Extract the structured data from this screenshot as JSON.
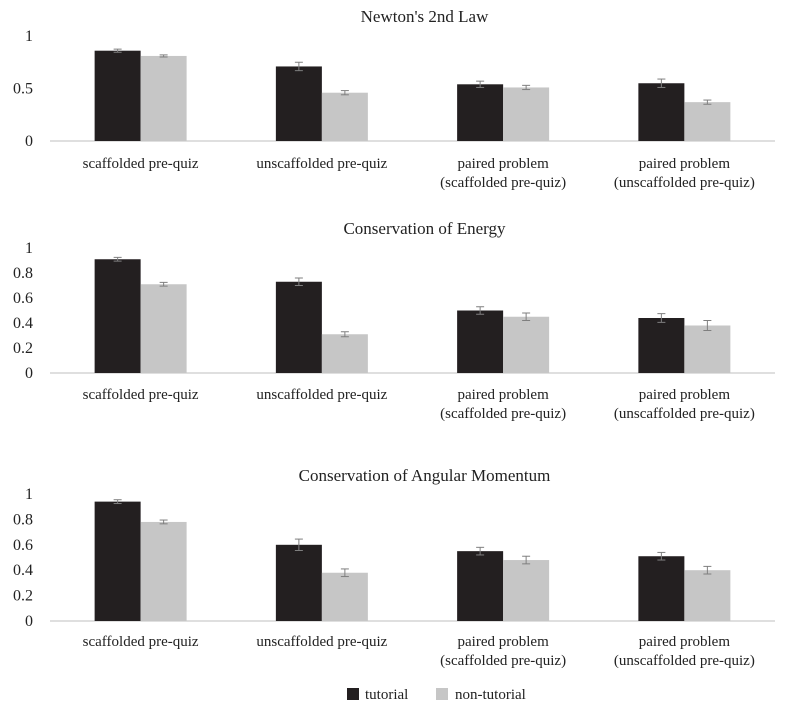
{
  "colors": {
    "tutorial": "#231f20",
    "non_tutorial": "#c6c6c6",
    "axis": "#bfbfbf",
    "error_bar": "#7f7f7f"
  },
  "legend": {
    "placement": "bottom-center",
    "items": [
      {
        "label": "tutorial",
        "color": "#231f20"
      },
      {
        "label": "non-tutorial",
        "color": "#c6c6c6"
      }
    ]
  },
  "chart_data": [
    {
      "type": "bar",
      "title": "Newton's 2nd Law",
      "xlabel": "",
      "ylabel": "",
      "ylim": [
        0,
        1
      ],
      "yticks": [
        "0",
        "0.5",
        "1"
      ],
      "grid": false,
      "categories": [
        [
          "scaffolded pre-quiz"
        ],
        [
          "unscaffolded pre-quiz"
        ],
        [
          "paired problem",
          "(scaffolded pre-quiz)"
        ],
        [
          "paired problem",
          "(unscaffolded pre-quiz)"
        ]
      ],
      "series": [
        {
          "name": "tutorial",
          "values": [
            0.86,
            0.71,
            0.54,
            0.55
          ],
          "errors": [
            0.015,
            0.04,
            0.03,
            0.04
          ]
        },
        {
          "name": "non-tutorial",
          "values": [
            0.81,
            0.46,
            0.51,
            0.37
          ],
          "errors": [
            0.01,
            0.02,
            0.02,
            0.02
          ]
        }
      ]
    },
    {
      "type": "bar",
      "title": "Conservation of Energy",
      "xlabel": "",
      "ylabel": "",
      "ylim": [
        0,
        1
      ],
      "yticks": [
        "0",
        "0.2",
        "0.4",
        "0.6",
        "0.8",
        "1"
      ],
      "grid": false,
      "categories": [
        [
          "scaffolded pre-quiz"
        ],
        [
          "unscaffolded pre-quiz"
        ],
        [
          "paired problem",
          "(scaffolded pre-quiz)"
        ],
        [
          "paired problem",
          "(unscaffolded pre-quiz)"
        ]
      ],
      "series": [
        {
          "name": "tutorial",
          "values": [
            0.91,
            0.73,
            0.5,
            0.44
          ],
          "errors": [
            0.015,
            0.03,
            0.03,
            0.035
          ]
        },
        {
          "name": "non-tutorial",
          "values": [
            0.71,
            0.31,
            0.45,
            0.38
          ],
          "errors": [
            0.015,
            0.02,
            0.03,
            0.04
          ]
        }
      ]
    },
    {
      "type": "bar",
      "title": "Conservation of Angular Momentum",
      "xlabel": "",
      "ylabel": "",
      "ylim": [
        0,
        1
      ],
      "yticks": [
        "0",
        "0.2",
        "0.4",
        "0.6",
        "0.8",
        "1"
      ],
      "grid": false,
      "categories": [
        [
          "scaffolded pre-quiz"
        ],
        [
          "unscaffolded pre-quiz"
        ],
        [
          "paired problem",
          "(scaffolded pre-quiz)"
        ],
        [
          "paired problem",
          "(unscaffolded pre-quiz)"
        ]
      ],
      "series": [
        {
          "name": "tutorial",
          "values": [
            0.94,
            0.6,
            0.55,
            0.51
          ],
          "errors": [
            0.015,
            0.045,
            0.03,
            0.03
          ]
        },
        {
          "name": "non-tutorial",
          "values": [
            0.78,
            0.38,
            0.48,
            0.4
          ],
          "errors": [
            0.015,
            0.03,
            0.03,
            0.03
          ]
        }
      ]
    }
  ]
}
